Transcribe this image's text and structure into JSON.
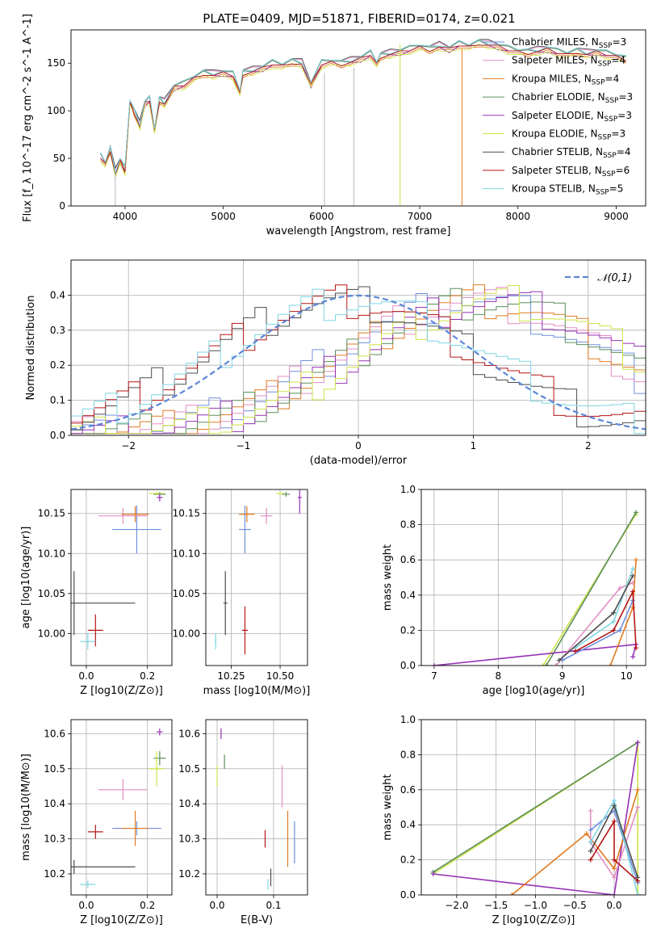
{
  "figure": {
    "title": "PLATE=0409, MJD=51871, FIBERID=0174, z=0.021"
  },
  "colors": {
    "Chabrier MILES": "#6f8fdc",
    "Salpeter MILES": "#e48ec4",
    "Kroupa MILES": "#e07b22",
    "Chabrier ELODIE": "#5b8f5b",
    "Salpeter ELODIE": "#9532b5",
    "Kroupa ELODIE": "#cfe24a",
    "Chabrier STELIB": "#4d4d4d",
    "Salpeter STELIB": "#b51616",
    "Kroupa STELIB": "#7fd6e3",
    "normal": "#5b86d6"
  },
  "chart_data": [
    {
      "id": "spectrum",
      "type": "line",
      "title": "PLATE=0409, MJD=51871, FIBERID=0174, z=0.021",
      "xlabel": "wavelength [Angstrom, rest frame]",
      "ylabel": "Flux [f_λ 10^-17 erg cm^-2 s^-1 A^-1]",
      "xlim": [
        3450,
        9300
      ],
      "ylim": [
        0,
        185
      ],
      "xticks": [
        4000,
        5000,
        6000,
        7000,
        8000,
        9000
      ],
      "yticks": [
        0,
        50,
        100,
        150
      ],
      "grid": false,
      "legend_position": "right",
      "legend": [
        {
          "model": "Chabrier MILES",
          "nssp": "3"
        },
        {
          "model": "Salpeter MILES",
          "nssp": "4"
        },
        {
          "model": "Kroupa MILES",
          "nssp": "4"
        },
        {
          "model": "Chabrier ELODIE",
          "nssp": "3"
        },
        {
          "model": "Salpeter ELODIE",
          "nssp": "3"
        },
        {
          "model": "Kroupa ELODIE",
          "nssp": "3"
        },
        {
          "model": "Chabrier STELIB",
          "nssp": "4"
        },
        {
          "model": "Salpeter STELIB",
          "nssp": "6"
        },
        {
          "model": "Kroupa STELIB",
          "nssp": "5"
        }
      ],
      "spectrum_x": [
        3750,
        3800,
        3850,
        3900,
        3950,
        4000,
        4050,
        4100,
        4150,
        4200,
        4250,
        4300,
        4350,
        4400,
        4500,
        4600,
        4700,
        4800,
        4900,
        5000,
        5100,
        5170,
        5200,
        5300,
        5400,
        5500,
        5600,
        5700,
        5800,
        5893,
        6000,
        6100,
        6200,
        6300,
        6400,
        6500,
        6563,
        6600,
        6700,
        6800,
        6900,
        7000,
        7100,
        7200,
        7300,
        7400,
        7500,
        7600,
        7700,
        7800,
        7900,
        8000,
        8100,
        8200,
        8300,
        8400,
        8500,
        8600,
        8700,
        8800,
        8900,
        9000,
        9100
      ],
      "spectrum_y": [
        52,
        45,
        60,
        35,
        48,
        38,
        110,
        98,
        85,
        108,
        112,
        80,
        112,
        108,
        125,
        128,
        135,
        140,
        138,
        140,
        138,
        120,
        140,
        142,
        145,
        150,
        148,
        152,
        150,
        128,
        150,
        152,
        150,
        152,
        155,
        160,
        150,
        158,
        160,
        162,
        165,
        168,
        165,
        168,
        165,
        170,
        168,
        172,
        170,
        168,
        165,
        163,
        162,
        163,
        165,
        162,
        160,
        163,
        160,
        162,
        160,
        158,
        155
      ],
      "series_offsets": [
        0,
        2,
        -3,
        1,
        -2,
        -4,
        3,
        -1,
        2
      ],
      "spikes": [
        {
          "x": 3900,
          "y": [
            0,
            35
          ]
        },
        {
          "x": 6030,
          "y": [
            0,
            140
          ]
        },
        {
          "x": 6330,
          "y": [
            0,
            145
          ]
        },
        {
          "x": 6800,
          "y": [
            0,
            170
          ]
        },
        {
          "x": 7430,
          "y": [
            0,
            165
          ]
        }
      ]
    },
    {
      "id": "residuals",
      "type": "line",
      "xlabel": "(data-model)/error",
      "ylabel": "Normed distribution",
      "xlim": [
        -2.5,
        2.5
      ],
      "ylim": [
        0,
        0.5
      ],
      "xticks": [
        -2,
        -1,
        0,
        1,
        2
      ],
      "yticks": [
        0.0,
        0.1,
        0.2,
        0.3,
        0.4
      ],
      "grid": true,
      "legend_position": "top-right",
      "normal_label": "𝒩(0,1)",
      "normal_mean": 0,
      "normal_sigma": 1,
      "group_a": {
        "models": [
          "Chabrier MILES",
          "Salpeter MILES",
          "Kroupa MILES",
          "Chabrier ELODIE",
          "Salpeter ELODIE",
          "Kroupa ELODIE"
        ],
        "center": 1.1,
        "sigma": 1.15
      },
      "group_b": {
        "models": [
          "Chabrier STELIB",
          "Salpeter STELIB",
          "Kroupa STELIB"
        ],
        "center": -0.1,
        "sigma": 1.15
      },
      "bin_width": 0.1
    },
    {
      "id": "age-vs-Z",
      "type": "scatter",
      "xlabel": "Z [log10(Z/Z⊙)]",
      "ylabel": "age [log10(age/yr)]",
      "xlim": [
        -0.05,
        0.28
      ],
      "ylim": [
        9.96,
        10.18
      ],
      "xticks": [
        0.0,
        0.2
      ],
      "yticks": [
        10.0,
        10.05,
        10.1,
        10.15
      ],
      "grid": true,
      "points": [
        {
          "model": "Chabrier MILES",
          "x": 0.165,
          "y": 10.13,
          "xerr": 0.08,
          "yerr": 0.03
        },
        {
          "model": "Salpeter MILES",
          "x": 0.12,
          "y": 10.147,
          "xerr": 0.08,
          "yerr": 0.01
        },
        {
          "model": "Kroupa MILES",
          "x": 0.16,
          "y": 10.149,
          "xerr": 0.045,
          "yerr": 0.01
        },
        {
          "model": "Chabrier ELODIE",
          "x": 0.24,
          "y": 10.174,
          "xerr": 0.02,
          "yerr": 0.003
        },
        {
          "model": "Salpeter ELODIE",
          "x": 0.24,
          "y": 10.17,
          "xerr": 0.01,
          "yerr": 0.005
        },
        {
          "model": "Kroupa ELODIE",
          "x": 0.23,
          "y": 10.175,
          "xerr": 0.025,
          "yerr": 0.002
        },
        {
          "model": "Chabrier STELIB",
          "x": -0.04,
          "y": 10.038,
          "xerr": 0.2,
          "yerr": 0.04
        },
        {
          "model": "Salpeter STELIB",
          "x": 0.03,
          "y": 10.004,
          "xerr": 0.025,
          "yerr": 0.02
        },
        {
          "model": "Kroupa STELIB",
          "x": 0.005,
          "y": 9.99,
          "xerr": 0.025,
          "yerr": 0.01
        }
      ]
    },
    {
      "id": "age-vs-mass",
      "type": "scatter",
      "xlabel": "mass [log10(M/M⊙)]",
      "ylabel": "",
      "xlim": [
        10.12,
        10.64
      ],
      "ylim": [
        9.96,
        10.18
      ],
      "xticks": [
        10.25,
        10.5
      ],
      "yticks": [
        10.0,
        10.05,
        10.1,
        10.15
      ],
      "grid": true,
      "points": [
        {
          "model": "Chabrier MILES",
          "x": 10.32,
          "y": 10.13,
          "xerr": 0.03,
          "yerr": 0.03
        },
        {
          "model": "Salpeter MILES",
          "x": 10.43,
          "y": 10.147,
          "xerr": 0.03,
          "yerr": 0.01
        },
        {
          "model": "Kroupa MILES",
          "x": 10.33,
          "y": 10.149,
          "xerr": 0.04,
          "yerr": 0.01
        },
        {
          "model": "Chabrier ELODIE",
          "x": 10.53,
          "y": 10.174,
          "xerr": 0.02,
          "yerr": 0.003
        },
        {
          "model": "Salpeter ELODIE",
          "x": 10.6,
          "y": 10.17,
          "xerr": 0.01,
          "yerr": 0.02
        },
        {
          "model": "Kroupa ELODIE",
          "x": 10.5,
          "y": 10.175,
          "xerr": 0.02,
          "yerr": 0.002
        },
        {
          "model": "Chabrier STELIB",
          "x": 10.22,
          "y": 10.038,
          "xerr": 0.01,
          "yerr": 0.04
        },
        {
          "model": "Salpeter STELIB",
          "x": 10.32,
          "y": 10.004,
          "xerr": 0.015,
          "yerr": 0.03
        },
        {
          "model": "Kroupa STELIB",
          "x": 10.17,
          "y": 9.99,
          "xerr": 0.005,
          "yerr": 0.01
        }
      ]
    },
    {
      "id": "mass-vs-Z",
      "type": "scatter",
      "xlabel": "Z [log10(Z/Z⊙)]",
      "ylabel": "mass [log10(M/M⊙)]",
      "xlim": [
        -0.05,
        0.28
      ],
      "ylim": [
        10.14,
        10.64
      ],
      "xticks": [
        0.0,
        0.2
      ],
      "yticks": [
        10.2,
        10.3,
        10.4,
        10.5,
        10.6
      ],
      "grid": true,
      "points": [
        {
          "model": "Chabrier MILES",
          "x": 0.165,
          "y": 10.33,
          "xerr": 0.08,
          "yerr": 0.02
        },
        {
          "model": "Salpeter MILES",
          "x": 0.12,
          "y": 10.44,
          "xerr": 0.08,
          "yerr": 0.03
        },
        {
          "model": "Kroupa MILES",
          "x": 0.16,
          "y": 10.33,
          "xerr": 0.045,
          "yerr": 0.05
        },
        {
          "model": "Chabrier ELODIE",
          "x": 0.24,
          "y": 10.53,
          "xerr": 0.02,
          "yerr": 0.02
        },
        {
          "model": "Salpeter ELODIE",
          "x": 0.24,
          "y": 10.605,
          "xerr": 0.01,
          "yerr": 0.01
        },
        {
          "model": "Kroupa ELODIE",
          "x": 0.23,
          "y": 10.5,
          "xerr": 0.025,
          "yerr": 0.05
        },
        {
          "model": "Chabrier STELIB",
          "x": -0.04,
          "y": 10.22,
          "xerr": 0.2,
          "yerr": 0.02
        },
        {
          "model": "Salpeter STELIB",
          "x": 0.03,
          "y": 10.32,
          "xerr": 0.025,
          "yerr": 0.02
        },
        {
          "model": "Kroupa STELIB",
          "x": 0.005,
          "y": 10.17,
          "xerr": 0.025,
          "yerr": 0.01
        }
      ]
    },
    {
      "id": "mass-vs-ebv",
      "type": "scatter",
      "xlabel": "E(B-V)",
      "ylabel": "",
      "xlim": [
        -0.02,
        0.16
      ],
      "ylim": [
        10.14,
        10.64
      ],
      "xticks": [
        0.0,
        0.1
      ],
      "yticks": [
        10.2,
        10.3,
        10.4,
        10.5,
        10.6
      ],
      "grid": true,
      "points": [
        {
          "model": "Chabrier MILES",
          "x": 0.137,
          "y": 10.29,
          "xerr": 0.0,
          "yerr": 0.06
        },
        {
          "model": "Salpeter MILES",
          "x": 0.115,
          "y": 10.45,
          "xerr": 0.0,
          "yerr": 0.06
        },
        {
          "model": "Kroupa MILES",
          "x": 0.125,
          "y": 10.3,
          "xerr": 0.0,
          "yerr": 0.08
        },
        {
          "model": "Chabrier ELODIE",
          "x": 0.013,
          "y": 10.52,
          "xerr": 0.0,
          "yerr": 0.02
        },
        {
          "model": "Salpeter ELODIE",
          "x": 0.007,
          "y": 10.6,
          "xerr": 0.0,
          "yerr": 0.015
        },
        {
          "model": "Kroupa ELODIE",
          "x": 0.0,
          "y": 10.48,
          "xerr": 0.0,
          "yerr": 0.03
        },
        {
          "model": "Chabrier STELIB",
          "x": 0.095,
          "y": 10.19,
          "xerr": 0.0,
          "yerr": 0.025
        },
        {
          "model": "Salpeter STELIB",
          "x": 0.085,
          "y": 10.3,
          "xerr": 0.0,
          "yerr": 0.025
        },
        {
          "model": "Kroupa STELIB",
          "x": 0.09,
          "y": 10.17,
          "xerr": 0.0,
          "yerr": 0.015
        }
      ]
    },
    {
      "id": "weight-vs-age",
      "type": "line",
      "xlabel": "age [log10(age/yr)]",
      "ylabel": "mass weight",
      "xlim": [
        6.8,
        10.3
      ],
      "ylim": [
        0,
        1.0
      ],
      "xticks": [
        7,
        8,
        9,
        10
      ],
      "yticks": [
        0.0,
        0.2,
        0.4,
        0.6,
        0.8,
        1.0
      ],
      "grid": true,
      "series": [
        {
          "model": "Kroupa ELODIE",
          "x": [
            8.7,
            10.15
          ],
          "y": [
            0.0,
            0.86
          ]
        },
        {
          "model": "Chabrier ELODIE",
          "x": [
            8.75,
            10.15
          ],
          "y": [
            0.0,
            0.87
          ]
        },
        {
          "model": "Salpeter ELODIE",
          "x": [
            7.0,
            10.15,
            10.1
          ],
          "y": [
            0.0,
            0.12,
            0.05
          ]
        },
        {
          "model": "Salpeter MILES",
          "x": [
            8.9,
            9.9,
            10.1
          ],
          "y": [
            0.0,
            0.44,
            0.47
          ]
        },
        {
          "model": "Kroupa MILES",
          "x": [
            9.75,
            10.1,
            10.15
          ],
          "y": [
            0.0,
            0.33,
            0.6
          ]
        },
        {
          "model": "Chabrier MILES",
          "x": [
            9.0,
            9.9,
            10.1
          ],
          "y": [
            0.03,
            0.2,
            0.37
          ]
        },
        {
          "model": "Kroupa STELIB",
          "x": [
            9.2,
            9.8,
            10.1
          ],
          "y": [
            0.1,
            0.25,
            0.55
          ]
        },
        {
          "model": "Chabrier STELIB",
          "x": [
            8.95,
            9.8,
            10.1
          ],
          "y": [
            0.03,
            0.3,
            0.51
          ]
        },
        {
          "model": "Salpeter STELIB",
          "x": [
            9.2,
            9.8,
            10.1,
            10.15
          ],
          "y": [
            0.08,
            0.2,
            0.42,
            0.1
          ]
        }
      ]
    },
    {
      "id": "weight-vs-Z",
      "type": "line",
      "xlabel": "Z [log10(Z/Z⊙)]",
      "ylabel": "mass weight",
      "xlim": [
        -2.45,
        0.4
      ],
      "ylim": [
        0,
        1.0
      ],
      "xticks": [
        -2.0,
        -1.5,
        -1.0,
        -0.5,
        0.0
      ],
      "yticks": [
        0.0,
        0.2,
        0.4,
        0.6,
        0.8,
        1.0
      ],
      "grid": true,
      "series": [
        {
          "model": "Kroupa ELODIE",
          "x": [
            -2.3,
            0.3,
            0.3
          ],
          "y": [
            0.12,
            0.87,
            0.0
          ]
        },
        {
          "model": "Chabrier ELODIE",
          "x": [
            -2.3,
            0.3
          ],
          "y": [
            0.13,
            0.87
          ]
        },
        {
          "model": "Salpeter ELODIE",
          "x": [
            -2.3,
            0.0,
            0.3
          ],
          "y": [
            0.12,
            0.0,
            0.87
          ]
        },
        {
          "model": "Kroupa MILES",
          "x": [
            -1.3,
            -0.35,
            0.0,
            0.3
          ],
          "y": [
            0.0,
            0.35,
            0.15,
            0.6
          ]
        },
        {
          "model": "Salpeter MILES",
          "x": [
            -0.3,
            -0.3,
            0.0,
            0.3
          ],
          "y": [
            0.48,
            0.3,
            0.1,
            0.5
          ]
        },
        {
          "model": "Chabrier MILES",
          "x": [
            -0.3,
            0.0,
            0.3
          ],
          "y": [
            0.37,
            0.48,
            0.07
          ]
        },
        {
          "model": "Kroupa STELIB",
          "x": [
            -0.3,
            0.0,
            0.3
          ],
          "y": [
            0.3,
            0.54,
            0.0
          ]
        },
        {
          "model": "Chabrier STELIB",
          "x": [
            -0.3,
            0.0,
            0.3
          ],
          "y": [
            0.25,
            0.51,
            0.1
          ]
        },
        {
          "model": "Salpeter STELIB",
          "x": [
            -0.3,
            0.0,
            0.0,
            0.3
          ],
          "y": [
            0.2,
            0.42,
            0.2,
            0.08
          ]
        }
      ]
    }
  ]
}
